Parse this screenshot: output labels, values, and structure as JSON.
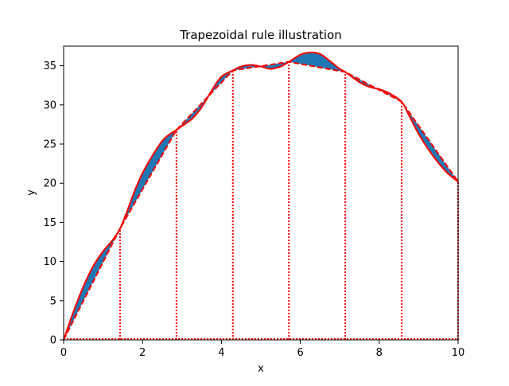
{
  "chart_data": {
    "type": "line",
    "title": "Trapezoidal rule illustration",
    "xlabel": "x",
    "ylabel": "y",
    "xlim": [
      0,
      10
    ],
    "ylim": [
      0,
      37.5
    ],
    "xticks": [
      0,
      2,
      4,
      6,
      8,
      10
    ],
    "xtick_labels": [
      "0",
      "2",
      "4",
      "6",
      "8",
      "10"
    ],
    "yticks": [
      0,
      5,
      10,
      15,
      20,
      25,
      30,
      35
    ],
    "ytick_labels": [
      "0",
      "5",
      "10",
      "15",
      "20",
      "25",
      "30",
      "35"
    ],
    "grid": false,
    "legend": "none",
    "curve": {
      "style": "solid",
      "color": "#ff0000",
      "x": [
        0,
        0.25,
        0.5,
        0.75,
        1.0,
        1.25,
        1.43,
        1.6,
        1.8,
        2.0,
        2.25,
        2.5,
        2.7,
        2.86,
        3.0,
        3.25,
        3.5,
        3.75,
        4.0,
        4.29,
        4.5,
        4.75,
        5.0,
        5.25,
        5.5,
        5.71,
        6.0,
        6.25,
        6.5,
        6.75,
        7.0,
        7.14,
        7.5,
        7.75,
        8.0,
        8.25,
        8.57,
        8.75,
        9.0,
        9.25,
        9.5,
        9.75,
        10.0
      ],
      "y": [
        0.0,
        3.6,
        6.8,
        9.4,
        11.3,
        12.8,
        14.2,
        16.3,
        19.0,
        21.3,
        23.5,
        25.4,
        26.3,
        26.8,
        27.3,
        28.2,
        29.7,
        31.8,
        33.6,
        34.4,
        34.9,
        35.1,
        34.9,
        34.6,
        34.9,
        35.5,
        36.4,
        36.7,
        36.5,
        35.6,
        34.6,
        34.2,
        32.9,
        32.3,
        32.0,
        31.5,
        30.4,
        28.7,
        26.3,
        24.3,
        22.6,
        21.2,
        20.2
      ]
    },
    "trapezoid_nodes": {
      "style": "dashed",
      "color": "#ff0000",
      "x": [
        0,
        1.43,
        2.86,
        4.29,
        5.71,
        7.14,
        8.57,
        10.0
      ],
      "y": [
        0.0,
        14.2,
        26.8,
        34.4,
        35.5,
        34.2,
        30.4,
        20.2
      ]
    },
    "fill_between": {
      "description": "area between curve and trapezoid chords",
      "color": "#1f77b4"
    },
    "vertical_lines": {
      "style": "dotted",
      "color": "#ff0000",
      "x": [
        1.43,
        2.86,
        4.29,
        5.71,
        7.14,
        8.57,
        10.0
      ]
    }
  }
}
